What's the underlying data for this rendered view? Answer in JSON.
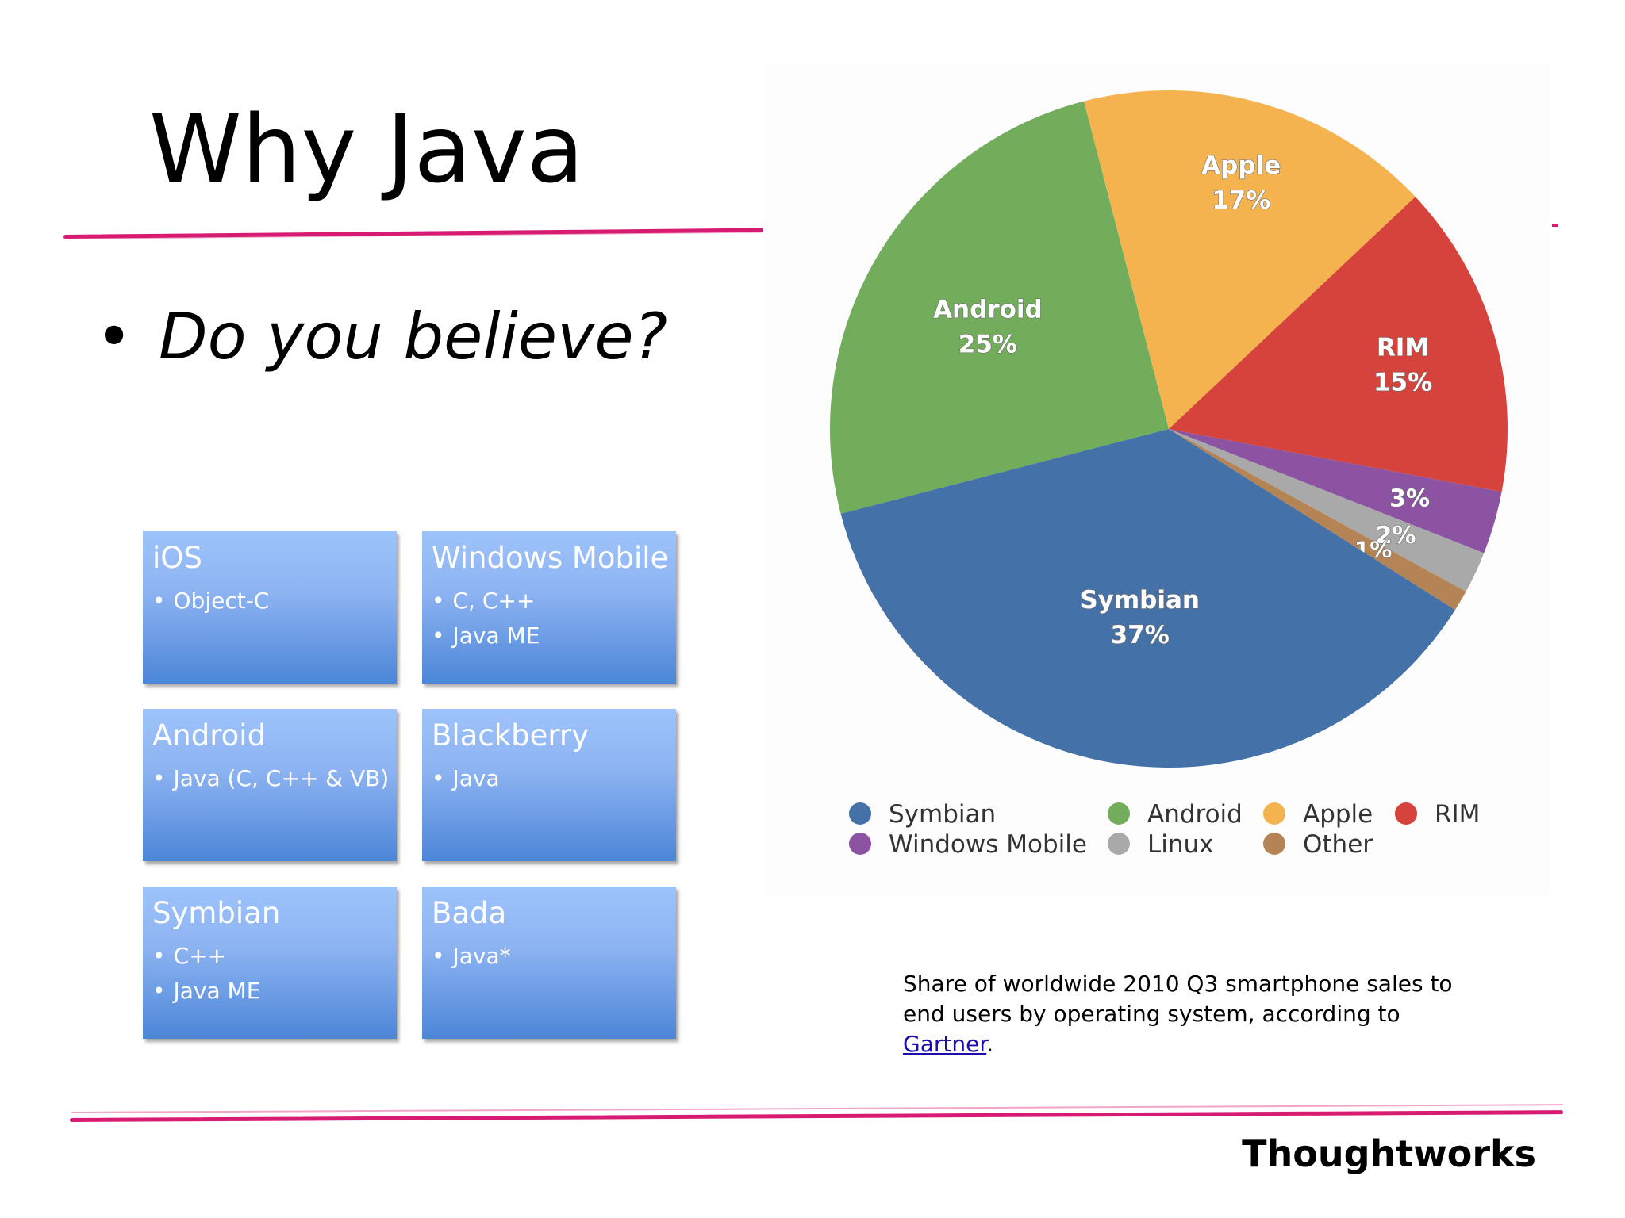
{
  "slide": {
    "title": "Why Java",
    "bullet": "Do you believe?",
    "brand": "Thoughtworks"
  },
  "boxes": [
    {
      "title": "iOS",
      "items": [
        "Object-C"
      ]
    },
    {
      "title": "Windows Mobile",
      "items": [
        "C, C++",
        "Java ME"
      ]
    },
    {
      "title": "Android",
      "items": [
        "Java (C, C++ & VB)"
      ]
    },
    {
      "title": "Blackberry",
      "items": [
        "Java"
      ]
    },
    {
      "title": "Symbian",
      "items": [
        "C++",
        "Java ME"
      ]
    },
    {
      "title": "Bada",
      "items": [
        "Java*"
      ]
    }
  ],
  "caption": {
    "text": "Share of worldwide 2010 Q3 smartphone sales to end users by operating system, according to",
    "link": "Gartner",
    "end": "."
  },
  "chart_data": {
    "type": "pie",
    "title": "",
    "slices": [
      {
        "name": "Symbian",
        "value": 37,
        "label": "37%",
        "color": "#4472a8"
      },
      {
        "name": "Android",
        "value": 25,
        "label": "25%",
        "color": "#71ad5b"
      },
      {
        "name": "Apple",
        "value": 17,
        "label": "17%",
        "color": "#f4b34f"
      },
      {
        "name": "RIM",
        "value": 15,
        "label": "15%",
        "color": "#d6423c"
      },
      {
        "name": "Windows Mobile",
        "value": 3,
        "label": "3%",
        "color": "#8c53a2"
      },
      {
        "name": "Linux",
        "value": 2,
        "label": "2%",
        "color": "#a9a9a9"
      },
      {
        "name": "Other",
        "value": 1,
        "label": "1%",
        "color": "#b48455"
      }
    ],
    "legend": [
      [
        "Symbian",
        "Android",
        "Apple",
        "RIM"
      ],
      [
        "Windows Mobile",
        "Linux",
        "Other"
      ]
    ],
    "legend_position": "bottom"
  }
}
